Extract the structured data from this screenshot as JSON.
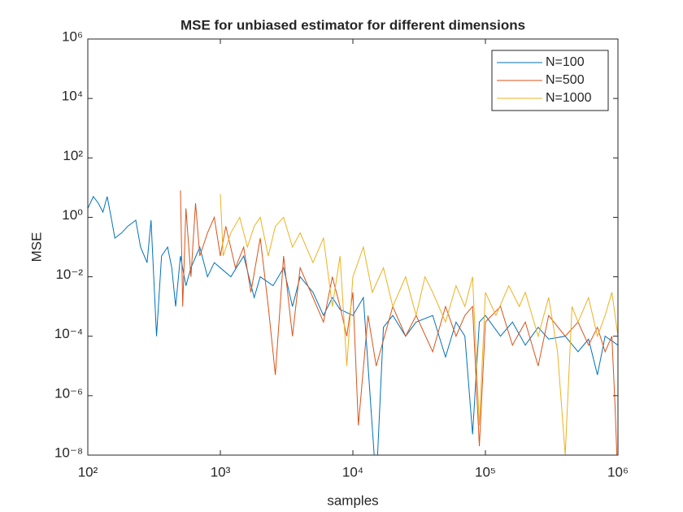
{
  "chart_data": {
    "type": "line",
    "title": "MSE for unbiased estimator for different dimensions",
    "x_label": "samples",
    "y_label": "MSE",
    "log_x": true,
    "log_y": true,
    "legend": "northeast",
    "xlim": [
      100,
      1000000
    ],
    "xticks": [
      {
        "value": 100,
        "label": "10²"
      },
      {
        "value": 1000,
        "label": "10³"
      },
      {
        "value": 10000,
        "label": "10⁴"
      },
      {
        "value": 100000,
        "label": "10⁵"
      },
      {
        "value": 1000000,
        "label": "10⁶"
      }
    ],
    "ylim": [
      1e-08,
      1000000
    ],
    "yticks": [
      {
        "value": 1e-08,
        "label": "10⁻⁸"
      },
      {
        "value": 1e-06,
        "label": "10⁻⁶"
      },
      {
        "value": 0.0001,
        "label": "10⁻⁴"
      },
      {
        "value": 0.01,
        "label": "10⁻²"
      },
      {
        "value": 1,
        "label": "10⁰"
      },
      {
        "value": 100,
        "label": "10²"
      },
      {
        "value": 10000,
        "label": "10⁴"
      },
      {
        "value": 1000000,
        "label": "10⁶"
      }
    ],
    "series": [
      {
        "name": "N=100",
        "color": "#0072bd",
        "x": [
          100,
          110,
          120,
          130,
          140,
          150,
          160,
          180,
          200,
          230,
          250,
          280,
          300,
          330,
          360,
          400,
          430,
          460,
          500,
          550,
          600,
          700,
          800,
          900,
          1000,
          1200,
          1500,
          1800,
          2000,
          2500,
          3000,
          3500,
          4000,
          5000,
          6000,
          7000,
          8000,
          10000,
          12000,
          15000,
          17000,
          20000,
          25000,
          30000,
          40000,
          50000,
          60000,
          70000,
          80000,
          90000,
          100000,
          130000,
          160000,
          200000,
          250000,
          300000,
          400000,
          500000,
          600000,
          700000,
          800000,
          1000000
        ],
        "values": [
          2,
          5,
          3,
          1.5,
          5,
          1,
          0.2,
          0.3,
          0.5,
          0.8,
          0.1,
          0.03,
          0.8,
          0.0001,
          0.05,
          0.1,
          0.02,
          0.001,
          0.05,
          0.005,
          0.02,
          0.1,
          0.01,
          0.03,
          0.02,
          0.01,
          0.05,
          0.002,
          0.01,
          0.005,
          0.02,
          0.001,
          0.01,
          0.003,
          0.0005,
          0.002,
          0.0008,
          0.0005,
          0.002,
          1e-09,
          0.0002,
          0.0005,
          0.0001,
          0.0003,
          0.0005,
          2e-05,
          0.0003,
          0.0001,
          5e-08,
          0.0003,
          0.0005,
          0.0001,
          0.0003,
          5e-05,
          0.0002,
          8e-05,
          0.0001,
          3e-05,
          8e-05,
          5e-06,
          0.0001,
          5e-05
        ]
      },
      {
        "name": "N=500",
        "color": "#d95319",
        "x": [
          500,
          520,
          550,
          600,
          650,
          700,
          800,
          900,
          1000,
          1100,
          1300,
          1500,
          1700,
          2000,
          2300,
          2600,
          3000,
          3500,
          4000,
          5000,
          6000,
          7000,
          8000,
          9000,
          10000,
          11000,
          13000,
          15000,
          20000,
          25000,
          30000,
          40000,
          50000,
          60000,
          70000,
          80000,
          90000,
          100000,
          130000,
          160000,
          200000,
          250000,
          300000,
          400000,
          500000,
          600000,
          700000,
          800000,
          900000,
          950000,
          1000000
        ],
        "values": [
          8,
          0.001,
          2,
          0.01,
          3,
          0.05,
          0.3,
          1,
          0.05,
          0.5,
          0.02,
          0.1,
          0.003,
          0.2,
          0.001,
          5e-06,
          0.05,
          0.0001,
          0.02,
          0.002,
          0.0003,
          0.01,
          0.001,
          0.0001,
          0.003,
          1e-07,
          0.0005,
          1e-05,
          0.001,
          0.0001,
          0.0005,
          3e-05,
          0.001,
          0.0001,
          0.0005,
          0.001,
          2e-08,
          0.0003,
          0.001,
          5e-05,
          0.0003,
          1e-05,
          0.0005,
          0.0001,
          0.0003,
          5e-05,
          0.0002,
          3e-05,
          0.0001,
          5e-07,
          1e-09
        ]
      },
      {
        "name": "N=1000",
        "color": "#edb120",
        "x": [
          1000,
          1050,
          1200,
          1400,
          1600,
          1800,
          2000,
          2300,
          2600,
          3000,
          3500,
          4000,
          5000,
          6000,
          7000,
          8000,
          9000,
          10000,
          12000,
          14000,
          17000,
          20000,
          25000,
          30000,
          35000,
          40000,
          50000,
          60000,
          70000,
          80000,
          90000,
          100000,
          120000,
          150000,
          180000,
          200000,
          250000,
          300000,
          350000,
          400000,
          450000,
          500000,
          600000,
          700000,
          800000,
          900000,
          1000000
        ],
        "values": [
          6,
          0.05,
          0.3,
          1,
          0.1,
          0.5,
          1,
          0.05,
          0.5,
          1,
          0.1,
          0.3,
          0.03,
          0.2,
          0.001,
          0.05,
          1e-05,
          0.01,
          0.1,
          0.003,
          0.02,
          0.001,
          0.01,
          0.0005,
          0.01,
          0.003,
          0.0003,
          0.005,
          0.001,
          0.01,
          1e-07,
          0.003,
          0.0005,
          0.005,
          0.001,
          0.003,
          0.0001,
          0.002,
          3e-05,
          1e-08,
          0.001,
          0.0003,
          0.002,
          0.0001,
          0.0005,
          0.003,
          0.0001
        ]
      }
    ]
  }
}
